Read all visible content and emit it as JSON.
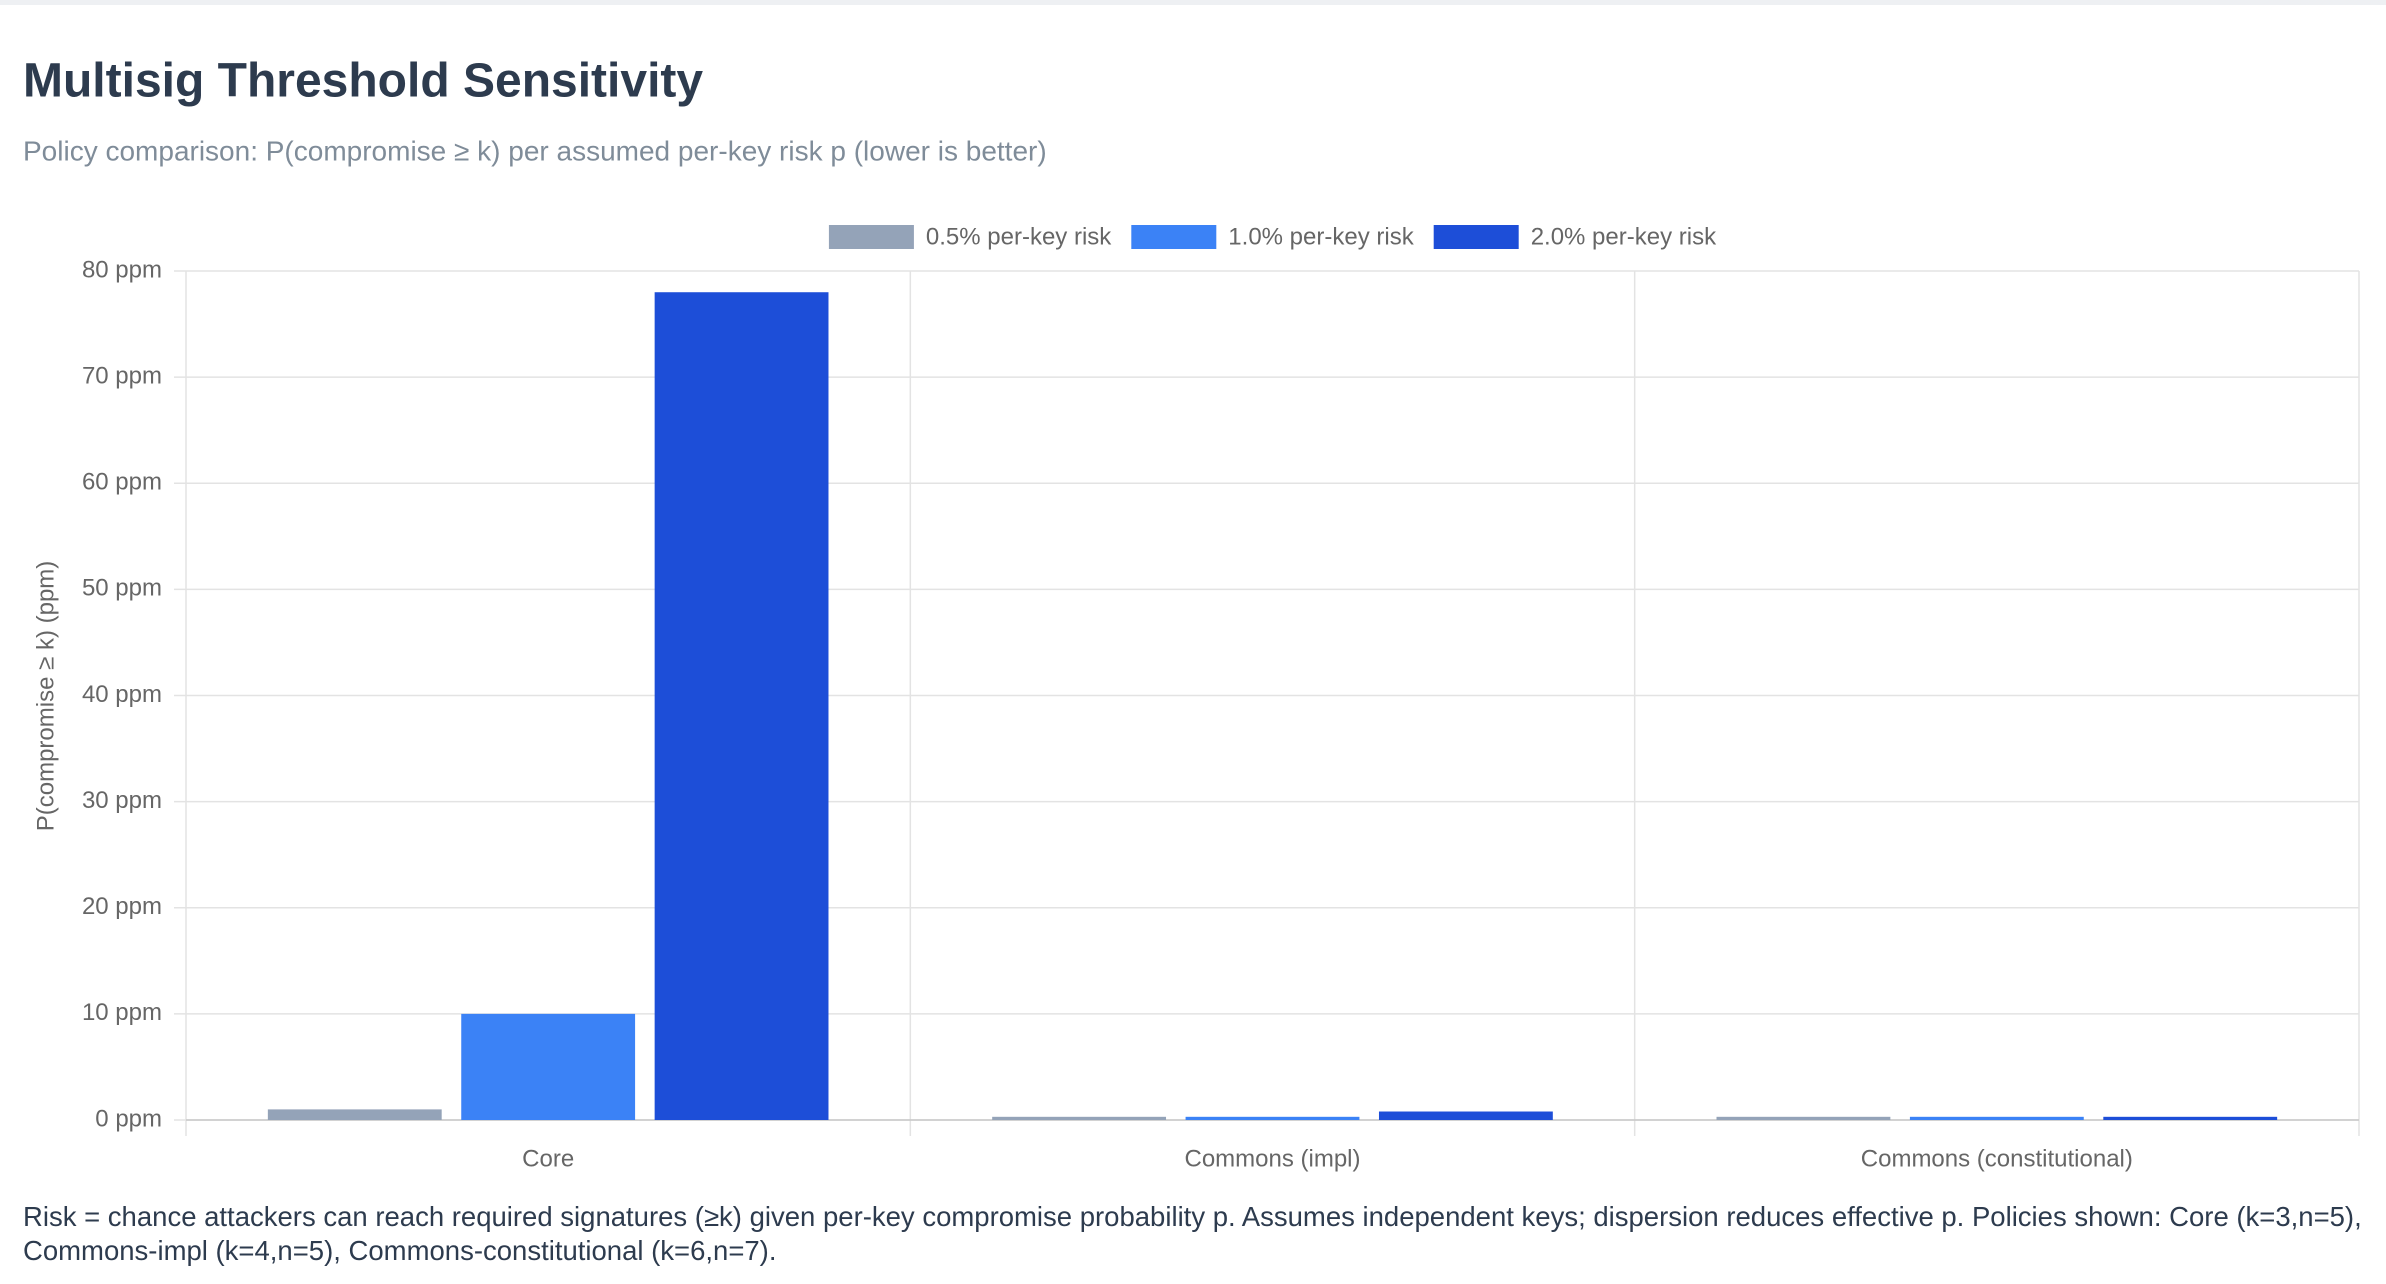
{
  "chart_data": {
    "type": "bar",
    "title": "Multisig Threshold Sensitivity",
    "subtitle": "Policy comparison: P(compromise ≥ k) per assumed per-key risk p (lower is better)",
    "y_label": "P(compromise ≥ k) (ppm)",
    "categories": [
      "Core",
      "Commons (impl)",
      "Commons (constitutional)"
    ],
    "series": [
      {
        "name": "0.5% per-key risk",
        "color": "#94a3b8",
        "values": [
          1,
          0.3,
          0.3
        ]
      },
      {
        "name": "1.0% per-key risk",
        "color": "#3b82f6",
        "values": [
          10,
          0.3,
          0.3
        ]
      },
      {
        "name": "2.0% per-key risk",
        "color": "#1d4ed8",
        "values": [
          78,
          0.8,
          0.3
        ]
      }
    ],
    "ylim": [
      0,
      80
    ],
    "yticks": [
      {
        "value": 0,
        "label": "0 ppm"
      },
      {
        "value": 10,
        "label": "10 ppm"
      },
      {
        "value": 20,
        "label": "20 ppm"
      },
      {
        "value": 30,
        "label": "30 ppm"
      },
      {
        "value": 40,
        "label": "40 ppm"
      },
      {
        "value": 50,
        "label": "50 ppm"
      },
      {
        "value": 60,
        "label": "60 ppm"
      },
      {
        "value": 70,
        "label": "70 ppm"
      },
      {
        "value": 80,
        "label": "80 ppm"
      }
    ],
    "grid": true,
    "legend": "top",
    "note": "Risk = chance attackers can reach required signatures (≥k) given per-key compromise probability p. Assumes independent keys; dispersion reduces effective p. Policies shown: Core (k=3,n=5), Commons-impl (k=4,n=5), Commons-constitutional (k=6,n=7)."
  }
}
